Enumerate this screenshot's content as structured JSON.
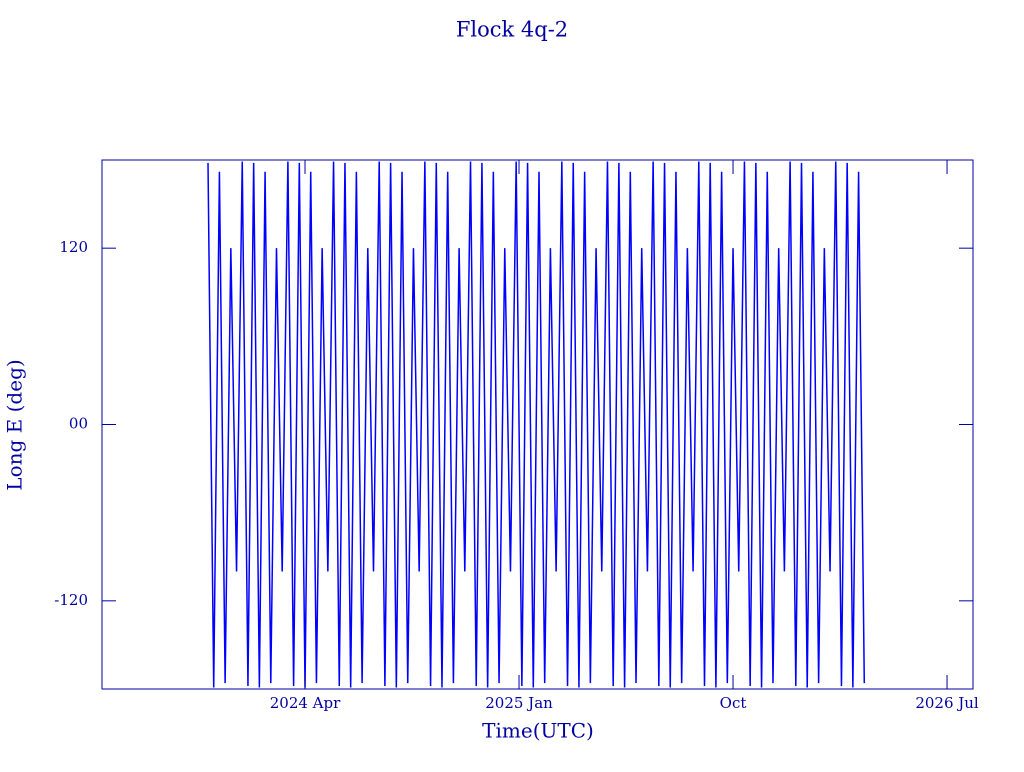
{
  "chart_data": {
    "type": "line",
    "title": "Flock 4q-2",
    "x_label": "Time(UTC)",
    "y_label": "Long E (deg)",
    "x": [
      2023.91,
      2023.93,
      2023.95,
      2023.97,
      2023.99,
      2024.01,
      2024.03,
      2024.05,
      2024.07,
      2024.09,
      2024.11,
      2024.13,
      2024.15,
      2024.17,
      2024.19,
      2024.21,
      2024.23,
      2024.25,
      2024.27,
      2024.29,
      2024.31,
      2024.33,
      2024.35,
      2024.37,
      2024.39,
      2024.41,
      2024.43,
      2024.45,
      2024.47,
      2024.49,
      2024.51,
      2024.53,
      2024.55,
      2024.57,
      2024.59,
      2024.61,
      2024.63,
      2024.65,
      2024.67,
      2024.69,
      2024.71,
      2024.73,
      2024.75,
      2024.77,
      2024.79,
      2024.81,
      2024.83,
      2024.85,
      2024.87,
      2024.89,
      2024.91,
      2024.93,
      2024.95,
      2024.97,
      2024.99,
      2025.01,
      2025.03,
      2025.05,
      2025.07,
      2025.09,
      2025.11,
      2025.13,
      2025.15,
      2025.17,
      2025.19,
      2025.21,
      2025.23,
      2025.25,
      2025.27,
      2025.29,
      2025.31,
      2025.33,
      2025.35,
      2025.37,
      2025.39,
      2025.41,
      2025.43,
      2025.45,
      2025.47,
      2025.49,
      2025.51,
      2025.53,
      2025.55,
      2025.57,
      2025.59,
      2025.61,
      2025.63,
      2025.65,
      2025.67,
      2025.69,
      2025.71,
      2025.73,
      2025.75,
      2025.77,
      2025.79,
      2025.81,
      2025.83,
      2025.85,
      2025.87,
      2025.89,
      2025.91,
      2025.93,
      2025.95,
      2025.97,
      2025.99,
      2026.01,
      2026.03,
      2026.05,
      2026.07,
      2026.09,
      2026.11,
      2026.13,
      2026.15,
      2026.17,
      2026.19,
      2026.21
    ],
    "values": [
      178,
      -179,
      172,
      -176,
      120,
      -100,
      179,
      -178,
      178,
      -179,
      172,
      -176,
      120,
      -100,
      179,
      -178,
      178,
      -179,
      172,
      -176,
      120,
      -100,
      179,
      -178,
      178,
      -179,
      172,
      -176,
      120,
      -100,
      179,
      -178,
      178,
      -179,
      172,
      -176,
      120,
      -100,
      179,
      -178,
      178,
      -179,
      172,
      -176,
      120,
      -100,
      179,
      -178,
      178,
      -179,
      172,
      -176,
      120,
      -100,
      179,
      -178,
      178,
      -179,
      172,
      -176,
      120,
      -100,
      179,
      -178,
      178,
      -179,
      172,
      -176,
      120,
      -100,
      179,
      -178,
      178,
      -179,
      172,
      -176,
      120,
      -100,
      179,
      -178,
      178,
      -179,
      172,
      -176,
      120,
      -100,
      179,
      -178,
      178,
      -179,
      172,
      -176,
      120,
      -100,
      179,
      -178,
      178,
      -179,
      172,
      -176,
      120,
      -100,
      179,
      -178,
      178,
      -179,
      172,
      -176,
      120,
      -100,
      179,
      -178,
      178,
      -179,
      172,
      -176
    ],
    "color": "#0000ff",
    "xlim": [
      2023.5385,
      2026.591
    ],
    "xticks": [
      {
        "value": 2024.25,
        "label": "2024 Apr"
      },
      {
        "value": 2025.0,
        "label": "2025 Jan"
      },
      {
        "value": 2025.75,
        "label": "Oct"
      },
      {
        "value": 2026.5,
        "label": "2026 Jul"
      }
    ],
    "ylim": [
      -180,
      180
    ],
    "yticks": [
      -120,
      {
        "value": 0,
        "label": "00"
      },
      120
    ],
    "grid": false
  }
}
